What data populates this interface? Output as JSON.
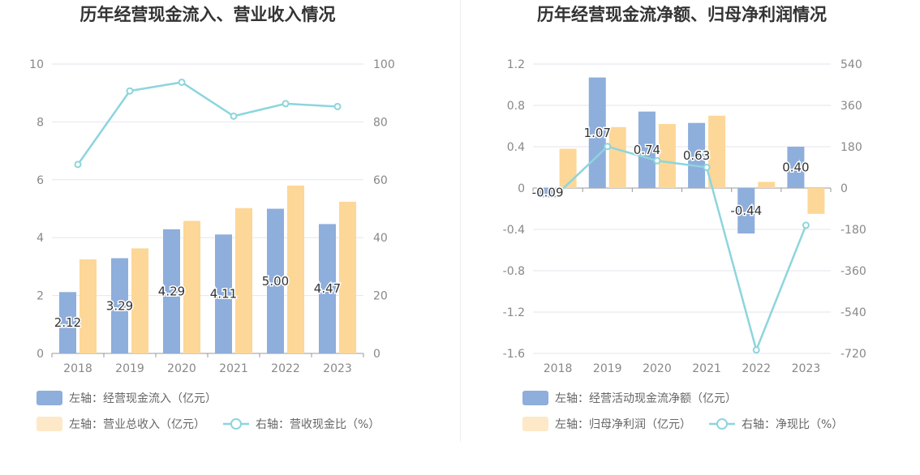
{
  "colors": {
    "bar_blue": "#8eaedc",
    "bar_orange": "#fdd797",
    "line": "#8dd5dc",
    "grid": "#e4e6ee",
    "axis": "#999999",
    "legend_orange": "#fde9c7"
  },
  "chart_data": [
    {
      "type": "bar",
      "title": "历年经营现金流入、营业收入情况",
      "categories": [
        "2018",
        "2019",
        "2020",
        "2021",
        "2022",
        "2023"
      ],
      "ylim_left": [
        0,
        10
      ],
      "yticks_left": [
        "0",
        "2",
        "4",
        "6",
        "8",
        "10"
      ],
      "ylim_right": [
        0,
        100
      ],
      "yticks_right": [
        "0",
        "20",
        "40",
        "60",
        "80",
        "100"
      ],
      "series": [
        {
          "name": "左轴：经营现金流入（亿元）",
          "axis": "left",
          "kind": "bar",
          "values": [
            2.12,
            3.29,
            4.29,
            4.11,
            5.0,
            4.47
          ],
          "labels": [
            "2.12",
            "3.29",
            "4.29",
            "4.11",
            "5.00",
            "4.47"
          ]
        },
        {
          "name": "左轴：营业总收入（亿元）",
          "axis": "left",
          "kind": "bar",
          "values": [
            3.25,
            3.63,
            4.58,
            5.02,
            5.8,
            5.24
          ]
        },
        {
          "name": "右轴：营收现金比（%）",
          "axis": "right",
          "kind": "line",
          "values": [
            65.3,
            90.7,
            93.7,
            82.0,
            86.3,
            85.3
          ]
        }
      ],
      "grid": true,
      "legend_position": "bottom-left"
    },
    {
      "type": "bar",
      "title": "历年经营现金流净额、归母净利润情况",
      "categories": [
        "2018",
        "2019",
        "2020",
        "2021",
        "2022",
        "2023"
      ],
      "ylim_left": [
        -1.6,
        1.2
      ],
      "yticks_left": [
        "-1.6",
        "-1.2",
        "-0.8",
        "-0.4",
        "0",
        "0.4",
        "0.8",
        "1.2"
      ],
      "ylim_right": [
        -720,
        540
      ],
      "yticks_right": [
        "-720",
        "-540",
        "-360",
        "-180",
        "0",
        "180",
        "360",
        "540"
      ],
      "series": [
        {
          "name": "左轴：经营活动现金流净额（亿元）",
          "axis": "left",
          "kind": "bar",
          "values": [
            -0.09,
            1.07,
            0.74,
            0.63,
            -0.44,
            0.4
          ],
          "labels": [
            "-0.09",
            "1.07",
            "0.74",
            "0.63",
            "-0.44",
            "0.40"
          ]
        },
        {
          "name": "左轴：归母净利润（亿元）",
          "axis": "left",
          "kind": "bar",
          "values": [
            0.38,
            0.59,
            0.62,
            0.7,
            0.06,
            -0.25
          ]
        },
        {
          "name": "右轴：净现比（%）",
          "axis": "right",
          "kind": "line",
          "values": [
            -24,
            181,
            119,
            90,
            -705,
            -162
          ]
        }
      ],
      "grid": true,
      "legend_position": "bottom-left"
    }
  ]
}
